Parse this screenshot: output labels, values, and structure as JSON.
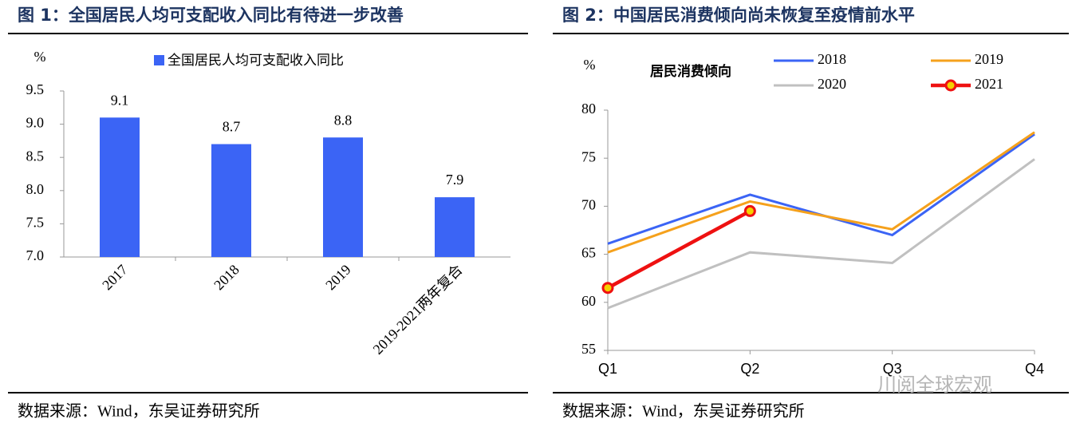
{
  "chart_data": [
    {
      "type": "bar",
      "title": "图 1：全国居民人均可支配收入同比有待进一步改善",
      "ylabel": "%",
      "categories": [
        "2017",
        "2018",
        "2019",
        "2019-2021两年复合"
      ],
      "series": [
        {
          "name": "全国居民人均可支配收入同比",
          "color": "#3b64f5",
          "values": [
            9.1,
            8.7,
            8.8,
            7.9
          ]
        }
      ],
      "ylim": [
        7.0,
        9.5
      ],
      "yticks": [
        {
          "value": 7,
          "label": "7.0"
        },
        7.5,
        {
          "value": 8,
          "label": "8.0"
        },
        8.5,
        {
          "value": 9,
          "label": "9.0"
        },
        9.5
      ],
      "source": "数据来源：Wind，东吴证券研究所"
    },
    {
      "type": "line",
      "title": "图 2：中国居民消费倾向尚未恢复至疫情前水平",
      "ylabel": "%",
      "subtitle": "居民消费倾向",
      "categories": [
        "Q1",
        "Q2",
        "Q3",
        "Q4"
      ],
      "series": [
        {
          "name": "2018",
          "color": "#3b64f5",
          "values": [
            66.1,
            71.2,
            67.0,
            77.5
          ]
        },
        {
          "name": "2019",
          "color": "#f5a11c",
          "values": [
            65.2,
            70.5,
            67.6,
            77.7
          ]
        },
        {
          "name": "2020",
          "color": "#c0c0c0",
          "values": [
            59.4,
            65.2,
            64.1,
            74.9
          ]
        },
        {
          "name": "2021",
          "color": "#ee1111",
          "values": [
            61.5,
            69.5,
            null,
            null
          ],
          "marker": true
        }
      ],
      "ylim": [
        55,
        80
      ],
      "yticks": [
        55,
        60,
        65,
        70,
        75,
        80
      ],
      "source": "数据来源：Wind，东吴证券研究所"
    }
  ],
  "watermark": "川阅全球宏观"
}
